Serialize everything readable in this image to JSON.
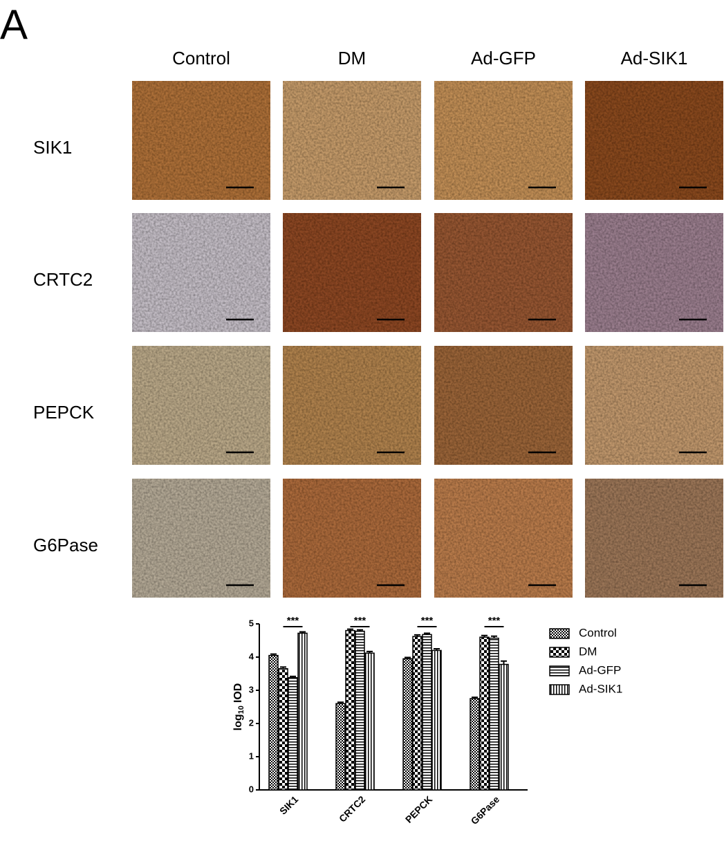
{
  "panel_label": "A",
  "columns": [
    "Control",
    "DM",
    "Ad-GFP",
    "Ad-SIK1"
  ],
  "rows": [
    "SIK1",
    "CRTC2",
    "PEPCK",
    "G6Pase"
  ],
  "chart_data": {
    "type": "bar",
    "ylabel": [
      "log",
      "10",
      "IOD"
    ],
    "categories": [
      "SIK1",
      "CRTC2",
      "PEPCK",
      "G6Pase"
    ],
    "series": [
      {
        "name": "Control",
        "color": "#000000",
        "pattern": "checker-small",
        "values": [
          4.05,
          2.6,
          3.95,
          2.75
        ],
        "errors": [
          0.04,
          0.04,
          0.04,
          0.04
        ]
      },
      {
        "name": "DM",
        "color": "#000000",
        "pattern": "checker-large",
        "values": [
          3.65,
          4.8,
          4.62,
          4.6
        ],
        "errors": [
          0.05,
          0.04,
          0.05,
          0.05
        ]
      },
      {
        "name": "Ad-GFP",
        "color": "#000000",
        "pattern": "hstripes",
        "values": [
          3.38,
          4.78,
          4.68,
          4.57
        ],
        "errors": [
          0.04,
          0.04,
          0.04,
          0.06
        ]
      },
      {
        "name": "Ad-SIK1",
        "color": "#000000",
        "pattern": "vstripes",
        "values": [
          4.72,
          4.12,
          4.2,
          3.78
        ],
        "errors": [
          0.04,
          0.05,
          0.05,
          0.1
        ]
      }
    ],
    "annotations": [
      "***",
      "***",
      "***",
      "***"
    ],
    "ylim": [
      0,
      5
    ],
    "yticks": [
      0,
      1,
      2,
      3,
      4,
      5
    ]
  }
}
